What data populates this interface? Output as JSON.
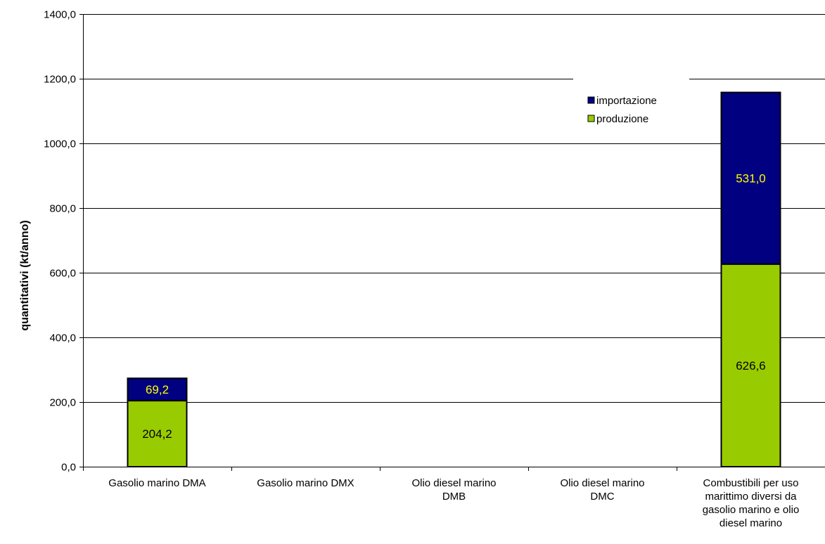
{
  "chart_data": {
    "type": "bar",
    "stacked": true,
    "categories": [
      [
        "Gasolio marino DMA"
      ],
      [
        "Gasolio marino DMX"
      ],
      [
        "Olio diesel marino",
        "DMB"
      ],
      [
        "Olio diesel marino",
        "DMC"
      ],
      [
        "Combustibili per uso",
        "marittimo diversi da",
        "gasolio marino e olio",
        "diesel marino"
      ]
    ],
    "series": [
      {
        "name": "produzione",
        "color": "#99cc00",
        "label_color": "#000000",
        "values": [
          204.2,
          null,
          null,
          null,
          626.6
        ],
        "labels": [
          "204,2",
          "",
          "",
          "",
          "626,6"
        ]
      },
      {
        "name": "importazione",
        "color": "#000080",
        "label_color": "#ffff00",
        "values": [
          69.2,
          null,
          null,
          null,
          531.0
        ],
        "labels": [
          "69,2",
          "",
          "",
          "",
          "531,0"
        ]
      }
    ],
    "ylabel": "quantitativi (kt/anno)",
    "ylim": [
      0,
      1400
    ],
    "yticks": [
      0,
      200,
      400,
      600,
      800,
      1000,
      1200,
      1400
    ],
    "ytick_labels": [
      "0,0",
      "200,0",
      "400,0",
      "600,0",
      "800,0",
      "1000,0",
      "1200,0",
      "1400,0"
    ],
    "grid": true,
    "legend": {
      "placement": "top-right",
      "entries": [
        "importazione",
        "produzione"
      ]
    }
  }
}
